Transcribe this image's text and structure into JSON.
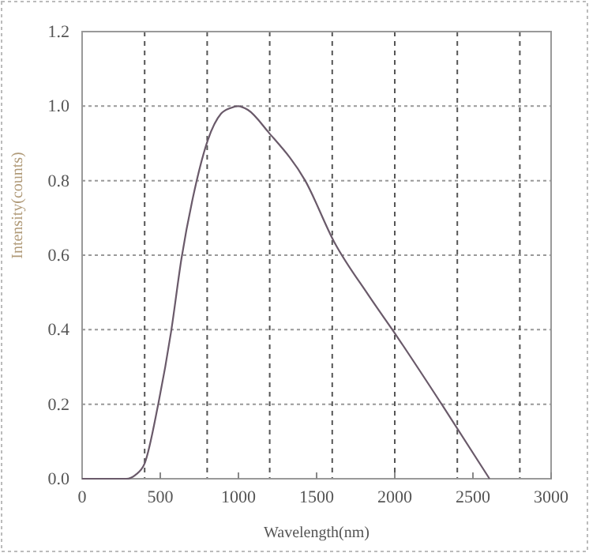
{
  "chart_data": {
    "type": "line",
    "xlabel": "Wavelength(nm)",
    "ylabel": "Intensity(counts)",
    "series": [
      {
        "color": "#6a5a6a",
        "x": [
          0,
          283,
          340,
          400,
          485,
          569,
          636,
          720,
          805,
          889,
          950,
          997,
          1060,
          1192,
          1427,
          1613,
          1831,
          2017,
          2300,
          2606
        ],
        "values": [
          0,
          0,
          0.01,
          0.041,
          0.196,
          0.394,
          0.592,
          0.776,
          0.91,
          0.98,
          0.995,
          1.0,
          0.99,
          0.93,
          0.8,
          0.635,
          0.493,
          0.38,
          0.2,
          0
        ]
      }
    ],
    "xlim": [
      0,
      3000
    ],
    "xticks": [
      0,
      500,
      1000,
      1500,
      2000,
      2500,
      3000
    ],
    "ylim": [
      0,
      1.2
    ],
    "yticks": [
      {
        "value": 0,
        "label": "0.0"
      },
      {
        "value": 0.2,
        "label": "0.2"
      },
      {
        "value": 0.4,
        "label": "0.4"
      },
      {
        "value": 0.6,
        "label": "0.6"
      },
      {
        "value": 0.8,
        "label": "0.8"
      },
      {
        "value": 1,
        "label": "1.0"
      },
      {
        "value": 1.2,
        "label": "1.2"
      }
    ],
    "grid": "y",
    "ref_lines": [
      {
        "axis": "x",
        "value": 400,
        "line_style": "dashed",
        "color": "#555555"
      },
      {
        "axis": "x",
        "value": 800,
        "line_style": "dashed",
        "color": "#555555"
      },
      {
        "axis": "x",
        "value": 1200,
        "line_style": "dashed",
        "color": "#555555"
      },
      {
        "axis": "x",
        "value": 1600,
        "line_style": "dashed",
        "color": "#555555"
      },
      {
        "axis": "x",
        "value": 2000,
        "line_style": "dashed",
        "color": "#555555"
      },
      {
        "axis": "x",
        "value": 2400,
        "line_style": "dashed",
        "color": "#555555"
      },
      {
        "axis": "x",
        "value": 2800,
        "line_style": "dashed",
        "color": "#555555"
      }
    ],
    "line_style": "solid",
    "marker": "none"
  }
}
